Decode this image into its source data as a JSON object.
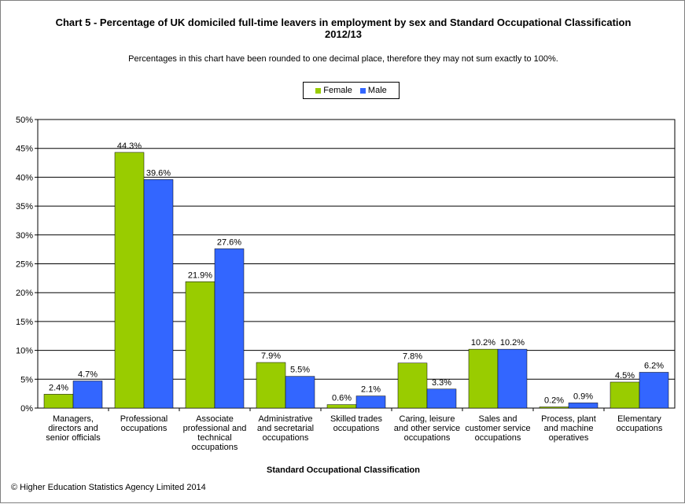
{
  "chart_data": {
    "type": "bar",
    "title": "Chart 5 - Percentage of UK domiciled full-time leavers in employment by sex and Standard Occupational Classification 2012/13",
    "subtitle": "Percentages in this chart have been rounded to one decimal place, therefore they may not sum exactly to 100%.",
    "xlabel": "Standard Occupational Classification",
    "ylabel": "",
    "ylim": [
      0,
      50
    ],
    "yticks": [
      "0%",
      "5%",
      "10%",
      "15%",
      "20%",
      "25%",
      "30%",
      "35%",
      "40%",
      "45%",
      "50%"
    ],
    "grid": true,
    "legend_position": "top",
    "categories": [
      "Managers, directors and senior officials",
      "Professional occupations",
      "Associate professional and technical occupations",
      "Administrative and secretarial occupations",
      "Skilled trades occupations",
      "Caring, leisure and other service occupations",
      "Sales and customer service occupations",
      "Process, plant and machine operatives",
      "Elementary occupations"
    ],
    "series": [
      {
        "name": "Female",
        "color": "#99cc00",
        "values": [
          2.4,
          44.3,
          21.9,
          7.9,
          0.6,
          7.8,
          10.2,
          0.2,
          4.5
        ],
        "labels": [
          "2.4%",
          "44.3%",
          "21.9%",
          "7.9%",
          "0.6%",
          "7.8%",
          "10.2%",
          "0.2%",
          "4.5%"
        ]
      },
      {
        "name": "Male",
        "color": "#3366ff",
        "values": [
          4.7,
          39.6,
          27.6,
          5.5,
          2.1,
          3.3,
          10.2,
          0.9,
          6.2
        ],
        "labels": [
          "4.7%",
          "39.6%",
          "27.6%",
          "5.5%",
          "2.1%",
          "3.3%",
          "10.2%",
          "0.9%",
          "6.2%"
        ]
      }
    ]
  },
  "footer": {
    "copyright": "© Higher Education Statistics Agency Limited 2014"
  }
}
